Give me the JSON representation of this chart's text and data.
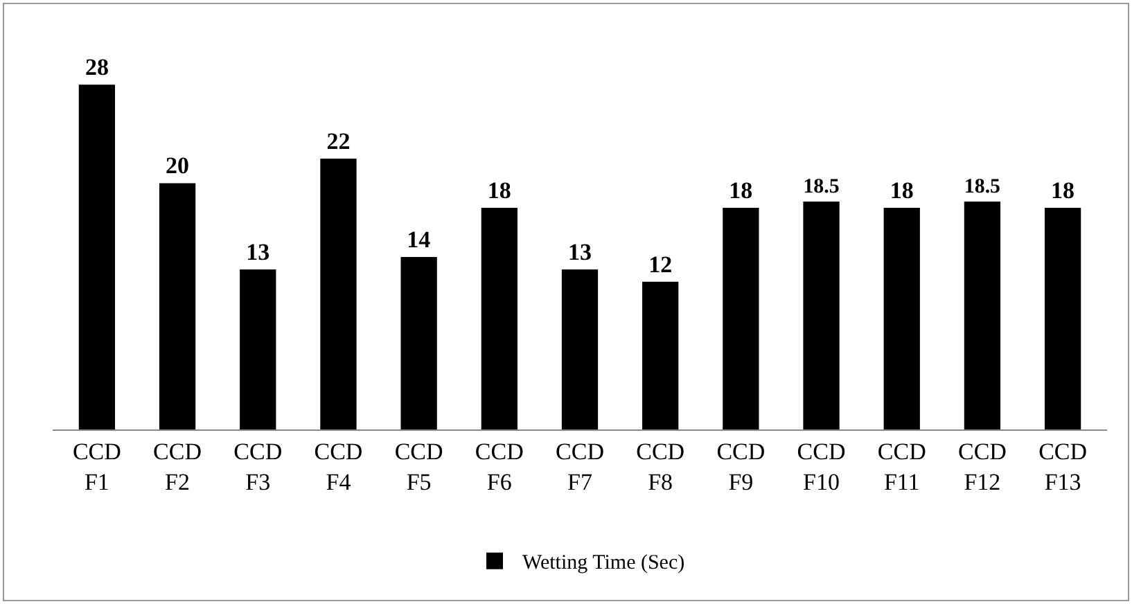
{
  "chart_data": {
    "type": "bar",
    "categories": [
      "CCD F1",
      "CCD F2",
      "CCD F3",
      "CCD F4",
      "CCD F5",
      "CCD F6",
      "CCD F7",
      "CCD F8",
      "CCD F9",
      "CCD F10",
      "CCD F11",
      "CCD F12",
      "CCD F13"
    ],
    "series": [
      {
        "name": "Wetting Time (Sec)",
        "color": "#000000",
        "values": [
          28,
          20,
          13,
          22,
          14,
          18,
          13,
          12,
          18,
          18.5,
          18,
          18.5,
          18
        ]
      }
    ],
    "data_labels": true,
    "grid": false,
    "legend": "bottom"
  }
}
